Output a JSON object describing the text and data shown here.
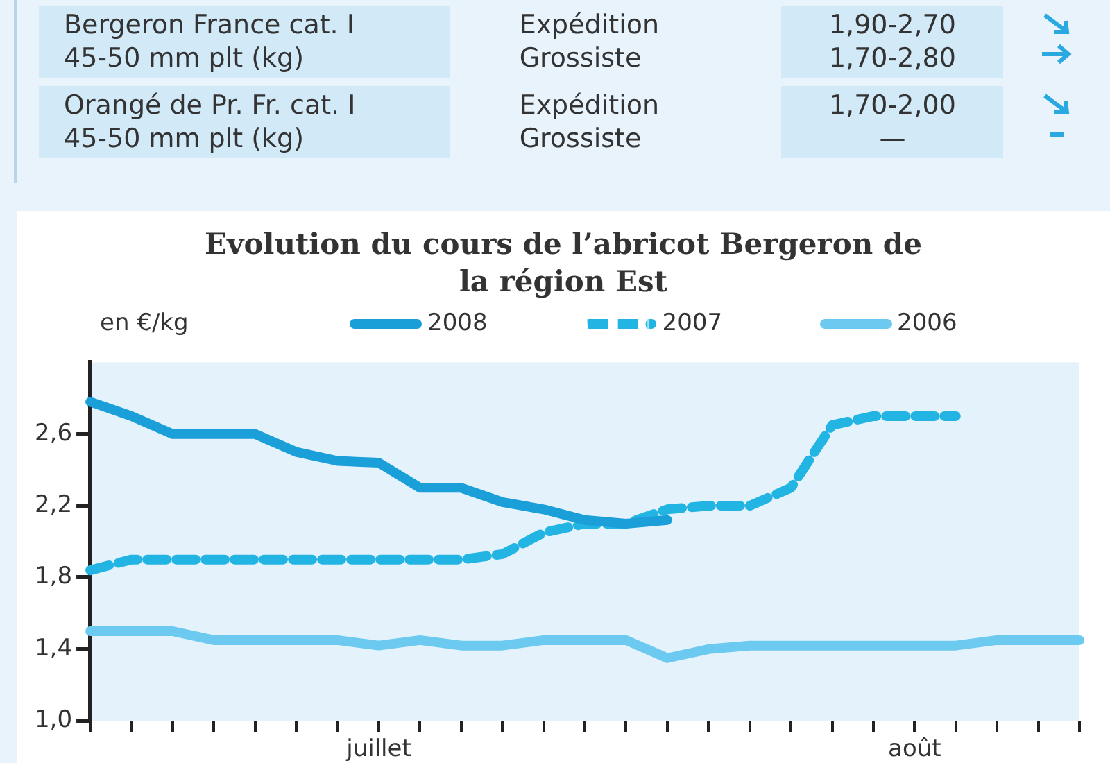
{
  "chart_data": {
    "type": "line",
    "title": "Evolution du cours de l’abricot  Bergeron de la région Est",
    "ylabel": "en €/kg",
    "annotations": [
      "Bergeron France cat. I",
      "45-50 mm plt (kg)",
      "Expédition",
      "Grossiste",
      "1,90-2,70",
      "1,70-2,80",
      "Orangé de Pr. Fr. cat. I",
      "45-50 mm plt (kg)",
      "Expédition",
      "Grossiste",
      "1,70-2,00",
      "—"
    ],
    "categories": [
      null,
      null,
      null,
      null,
      null,
      null,
      null,
      "juillet",
      null,
      null,
      null,
      null,
      null,
      null,
      null,
      null,
      null,
      null,
      null,
      null,
      "août",
      null,
      null,
      null,
      null
    ],
    "series": [
      {
        "name": "2008",
        "color": "#1a9fd9",
        "line_style": "solid",
        "values": [
          2.78,
          2.7,
          2.6,
          2.6,
          2.6,
          2.5,
          2.45,
          2.44,
          2.3,
          2.3,
          2.22,
          2.18,
          2.12,
          2.1,
          2.12,
          null,
          null,
          null,
          null,
          null,
          null,
          null,
          null,
          null,
          null
        ]
      },
      {
        "name": "2007",
        "color": "#22b5e3",
        "line_style": "dashed",
        "values": [
          1.84,
          1.9,
          1.9,
          1.9,
          1.9,
          1.9,
          1.9,
          1.9,
          1.9,
          1.9,
          1.93,
          2.05,
          2.1,
          2.1,
          2.18,
          2.2,
          2.2,
          2.3,
          2.65,
          2.7,
          2.7,
          2.7,
          null,
          null,
          null
        ]
      },
      {
        "name": "2006",
        "color": "#6ccaf0",
        "line_style": "solid",
        "values": [
          1.5,
          1.5,
          1.5,
          1.45,
          1.45,
          1.45,
          1.45,
          1.42,
          1.45,
          1.42,
          1.42,
          1.45,
          1.45,
          1.45,
          1.35,
          1.4,
          1.42,
          1.42,
          1.42,
          1.42,
          1.42,
          1.42,
          1.45,
          1.45,
          1.45
        ]
      }
    ],
    "ylim": [
      1.0,
      3.0
    ],
    "yticks": [
      {
        "value": 1.0,
        "label": "1,0"
      },
      {
        "value": 1.4,
        "label": "1,4"
      },
      {
        "value": 1.8,
        "label": "1,8"
      },
      {
        "value": 2.2,
        "label": "2,2"
      },
      {
        "value": 2.6,
        "label": "2,6"
      }
    ],
    "grid": false,
    "legend": "top",
    "marker": "none"
  }
}
